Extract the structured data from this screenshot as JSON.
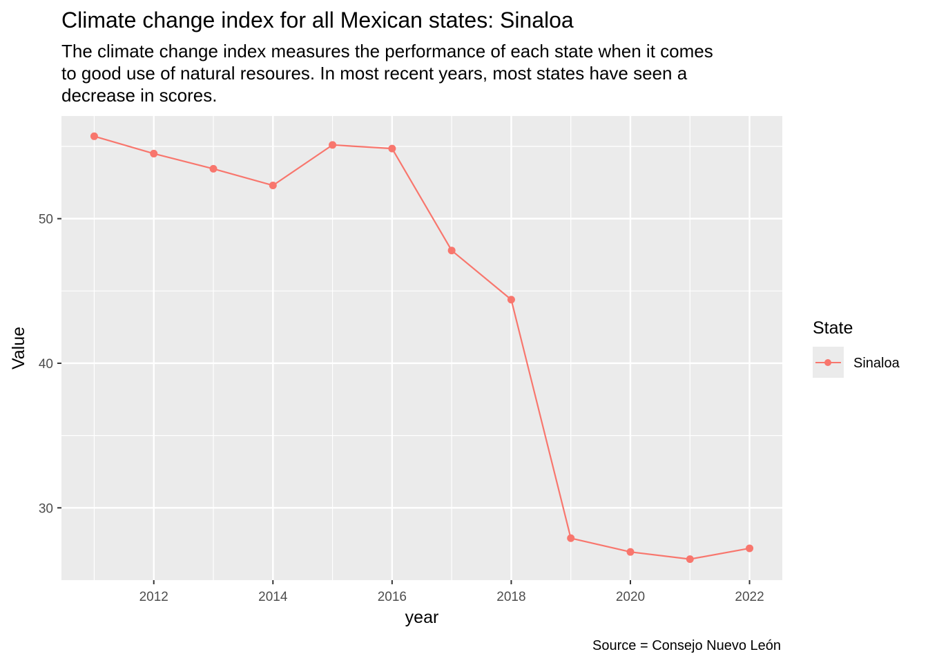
{
  "chart_data": {
    "type": "line",
    "title": "Climate change index for all Mexican states: Sinaloa",
    "subtitle_lines": [
      "The climate change index measures the performance of each state when it comes",
      "to good use of natural resoures. In most recent years, most states have seen a",
      "decrease in scores."
    ],
    "xlabel": "year",
    "ylabel": "Value",
    "caption": "Source = Consejo Nuevo León",
    "x_ticks": [
      2012,
      2014,
      2016,
      2018,
      2020,
      2022
    ],
    "y_ticks": [
      30,
      40,
      50
    ],
    "xlim": [
      2010.45,
      2022.55
    ],
    "ylim": [
      25,
      57.1
    ],
    "grid": true,
    "legend": {
      "title": "State",
      "placement": "right"
    },
    "series": [
      {
        "name": "Sinaloa",
        "color": "#F8766D",
        "x": [
          2011,
          2012,
          2013,
          2014,
          2015,
          2016,
          2017,
          2018,
          2019,
          2020,
          2021,
          2022
        ],
        "values": [
          55.7,
          54.5,
          53.45,
          52.3,
          55.1,
          54.85,
          47.8,
          44.4,
          27.9,
          26.95,
          26.45,
          27.2
        ]
      }
    ]
  }
}
